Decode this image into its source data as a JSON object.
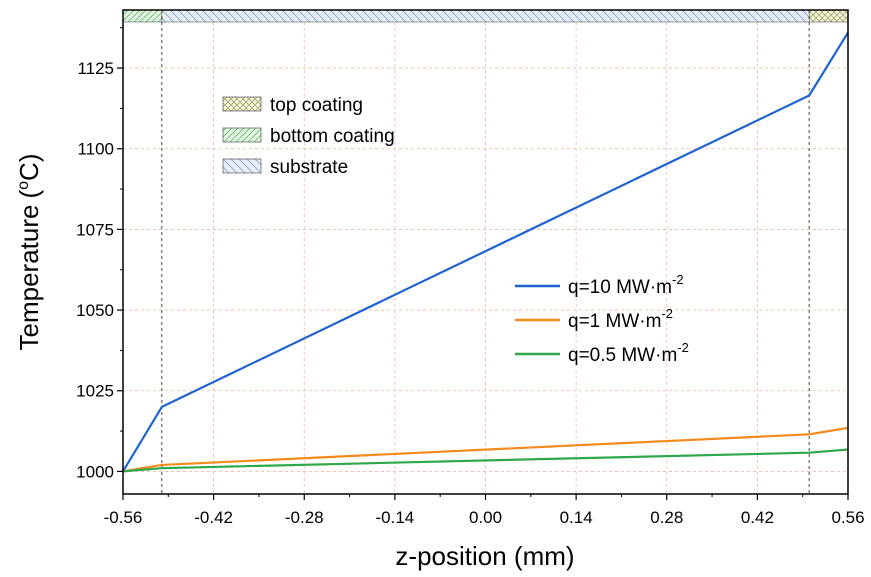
{
  "chart_data": {
    "type": "line",
    "xlabel": "z-position (mm)",
    "ylabel": "Temperature",
    "ylabel_unit_prefix": "(",
    "ylabel_unit_super": "o",
    "ylabel_unit_base": "C)",
    "xlim": [
      -0.56,
      0.56
    ],
    "ylim": [
      993,
      1143
    ],
    "x_ticks": [
      "-0.56",
      "-0.42",
      "-0.28",
      "-0.14",
      "0.00",
      "0.14",
      "0.28",
      "0.42",
      "0.56"
    ],
    "x_tick_values": [
      -0.56,
      -0.42,
      -0.28,
      -0.14,
      0.0,
      0.14,
      0.28,
      0.42,
      0.56
    ],
    "y_ticks": [
      "1000",
      "1025",
      "1050",
      "1075",
      "1100",
      "1125"
    ],
    "y_tick_values": [
      1000,
      1025,
      1050,
      1075,
      1100,
      1125
    ],
    "grid": true,
    "interfaces": [
      -0.5,
      0.5
    ],
    "series": [
      {
        "name": "q=10 MW·m",
        "name_super": "-2",
        "color": "#1f63d2",
        "x": [
          -0.56,
          -0.5,
          0.5,
          0.56
        ],
        "y": [
          1000,
          1020,
          1116.5,
          1136
        ]
      },
      {
        "name": "q=1 MW·m",
        "name_super": "-2",
        "color": "#f28a1c",
        "x": [
          -0.56,
          -0.5,
          0.5,
          0.56
        ],
        "y": [
          1000,
          1002,
          1011.5,
          1013.5
        ]
      },
      {
        "name": "q=0.5 MW·m",
        "name_super": "-2",
        "color": "#2ea84a",
        "x": [
          -0.56,
          -0.5,
          0.5,
          0.56
        ],
        "y": [
          1000,
          1001,
          1005.8,
          1006.8
        ]
      }
    ],
    "regions": [
      {
        "name": "top coating",
        "x": [
          0.5,
          0.56
        ],
        "pattern": "crosshatch",
        "color": "#c8c890"
      },
      {
        "name": "bottom coating",
        "x": [
          -0.56,
          -0.5
        ],
        "pattern": "diagonal",
        "color": "#8cc88c"
      },
      {
        "name": "substrate",
        "x": [
          -0.5,
          0.5
        ],
        "pattern": "backdiagonal",
        "color": "#8ca8d8"
      }
    ],
    "region_legend_position": "top-left",
    "series_legend_position": "center-right"
  }
}
